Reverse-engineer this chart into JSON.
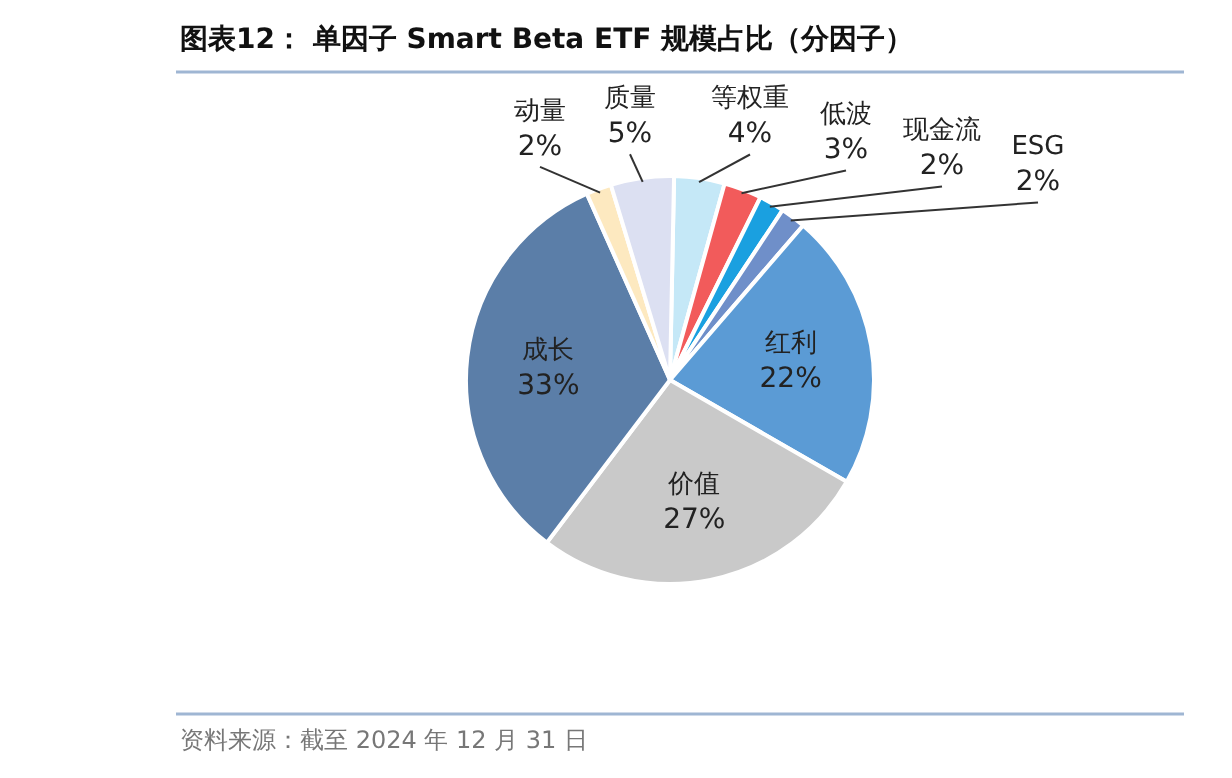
{
  "chart_data": {
    "type": "pie",
    "title": "图表12：  单因子 Smart Beta ETF 规模占比（分因子）",
    "categories": [
      "等权重",
      "低波",
      "现金流",
      "ESG",
      "红利",
      "价值",
      "成长",
      "动量",
      "质量"
    ],
    "values": [
      4,
      3,
      2,
      2,
      22,
      27,
      33,
      2,
      5
    ],
    "colors": [
      "#c5e8f7",
      "#f25b5b",
      "#1aa0e0",
      "#6f8fc9",
      "#5b9bd5",
      "#c9c9c9",
      "#5b7ea8",
      "#fde9c0",
      "#dce0f2"
    ],
    "value_labels": [
      "4%",
      "3%",
      "2%",
      "2%",
      "22%",
      "27%",
      "33%",
      "2%",
      "5%"
    ],
    "annotations": [
      "资料来源：截至 2024 年 12 月 31 日"
    ]
  }
}
